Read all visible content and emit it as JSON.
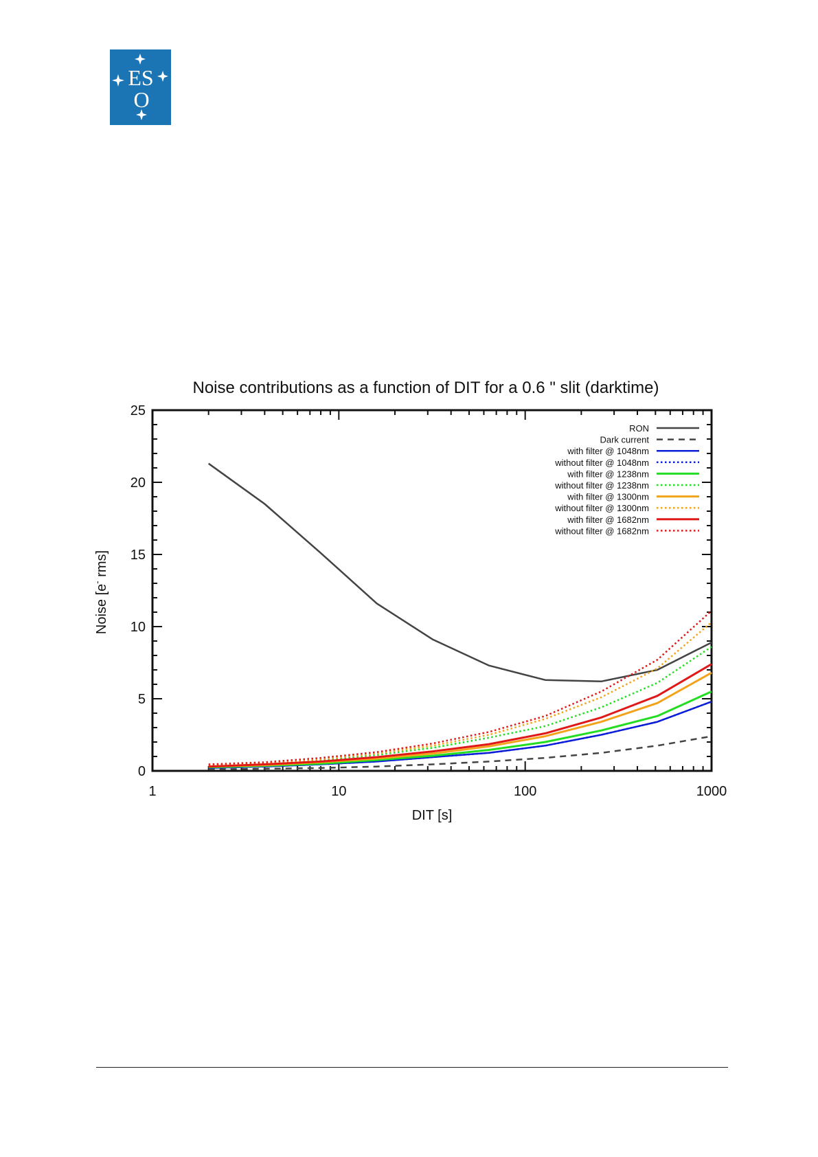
{
  "logo": {
    "letters": "ESO",
    "color": "#1b74b3"
  },
  "chart_data": {
    "type": "line",
    "title": "Noise contributions as a function of DIT for a 0.6 \" slit (darktime)",
    "xlabel": "DIT [s]",
    "ylabel_main": "Noise [e",
    "ylabel_sup": "-",
    "ylabel_tail": " rms]",
    "xscale": "log",
    "xlim": [
      1,
      1000
    ],
    "ylim": [
      0,
      25
    ],
    "xticks": [
      1,
      10,
      100,
      1000
    ],
    "xtick_labels": [
      "1",
      "10",
      "100",
      "1000"
    ],
    "yticks": [
      0,
      5,
      10,
      15,
      20,
      25
    ],
    "ytick_labels": [
      "0",
      "5",
      "10",
      "15",
      "20",
      "25"
    ],
    "legend_position": "top-right",
    "x": [
      2,
      4,
      8,
      16,
      32,
      64,
      128,
      256,
      512,
      1000
    ],
    "series": [
      {
        "name": "RON",
        "color": "#444444",
        "style": "solid",
        "width": 2.5,
        "values": [
          21.3,
          18.5,
          15.1,
          11.6,
          9.1,
          7.3,
          6.3,
          6.2,
          7.0,
          8.9
        ]
      },
      {
        "name": "Dark current",
        "color": "#444444",
        "style": "dashed",
        "width": 2.5,
        "values": [
          0.1,
          0.15,
          0.2,
          0.3,
          0.45,
          0.65,
          0.9,
          1.25,
          1.75,
          2.4
        ]
      },
      {
        "name": "with filter @ 1048nm",
        "color": "#0a1ed8",
        "style": "solid",
        "width": 2.5,
        "values": [
          0.2,
          0.3,
          0.45,
          0.65,
          0.95,
          1.25,
          1.75,
          2.5,
          3.4,
          4.8
        ]
      },
      {
        "name": "without filter @ 1048nm",
        "color": "#0a1ed8",
        "style": "dotted",
        "width": 2.5,
        "values": [
          0.2,
          0.3,
          0.45,
          0.65,
          0.95,
          1.25,
          1.75,
          2.5,
          3.4,
          4.8
        ]
      },
      {
        "name": "with filter @ 1238nm",
        "color": "#22dd22",
        "style": "solid",
        "width": 3,
        "values": [
          0.25,
          0.35,
          0.5,
          0.75,
          1.05,
          1.45,
          2.0,
          2.8,
          3.8,
          5.5
        ]
      },
      {
        "name": "without filter @ 1238nm",
        "color": "#22dd22",
        "style": "dotted",
        "width": 2.5,
        "values": [
          0.35,
          0.5,
          0.75,
          1.1,
          1.6,
          2.3,
          3.1,
          4.4,
          6.1,
          8.6
        ]
      },
      {
        "name": "with filter @ 1300nm",
        "color": "#f2a31a",
        "style": "solid",
        "width": 3,
        "values": [
          0.3,
          0.4,
          0.6,
          0.85,
          1.2,
          1.7,
          2.4,
          3.4,
          4.7,
          6.8
        ]
      },
      {
        "name": "without filter @ 1300nm",
        "color": "#f2a31a",
        "style": "dotted",
        "width": 2.5,
        "values": [
          0.4,
          0.55,
          0.8,
          1.2,
          1.75,
          2.5,
          3.6,
          5.1,
          7.1,
          10.3
        ]
      },
      {
        "name": "with filter @ 1682nm",
        "color": "#e01818",
        "style": "solid",
        "width": 3,
        "values": [
          0.3,
          0.45,
          0.65,
          0.95,
          1.35,
          1.85,
          2.6,
          3.7,
          5.2,
          7.4
        ]
      },
      {
        "name": "without filter @ 1682nm",
        "color": "#e01818",
        "style": "dotted",
        "width": 2.5,
        "values": [
          0.45,
          0.6,
          0.9,
          1.3,
          1.9,
          2.7,
          3.8,
          5.5,
          7.7,
          11.1
        ]
      }
    ]
  }
}
